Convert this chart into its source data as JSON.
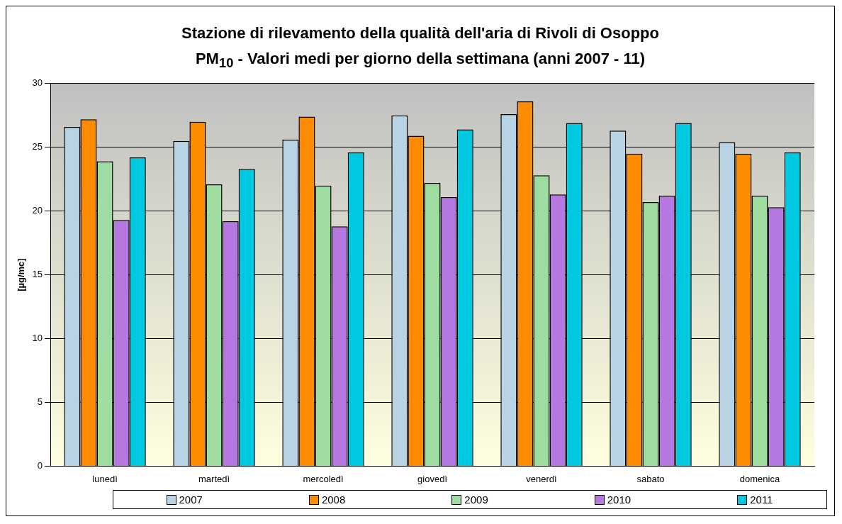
{
  "chart_data": {
    "type": "bar",
    "title": "Stazione di rilevamento della qualità dell'aria di Rivoli di Osoppo",
    "subtitle": "PM$_{10}$ - Valori medi per giorno della settimana (anni 2007 - 11)",
    "ylabel": "[µg/mc]",
    "categories": [
      "lunedì",
      "martedì",
      "mercoledì",
      "giovedì",
      "venerdì",
      "sabato",
      "domenica"
    ],
    "series": [
      {
        "name": "2007",
        "color": "#b8d4e4",
        "values": [
          26.6,
          25.5,
          25.6,
          27.5,
          27.6,
          26.3,
          25.4
        ]
      },
      {
        "name": "2008",
        "color": "#ff8c00",
        "values": [
          27.2,
          27.0,
          27.4,
          25.9,
          28.6,
          24.5,
          24.5
        ]
      },
      {
        "name": "2009",
        "color": "#9fdc9f",
        "values": [
          23.9,
          22.1,
          22.0,
          22.2,
          22.8,
          20.7,
          21.2
        ]
      },
      {
        "name": "2010",
        "color": "#b478e0",
        "values": [
          19.3,
          19.2,
          18.8,
          21.1,
          21.3,
          21.2,
          20.3
        ]
      },
      {
        "name": "2011",
        "color": "#00c8e0",
        "values": [
          24.2,
          23.3,
          24.6,
          26.4,
          26.9,
          26.9,
          24.6
        ]
      }
    ],
    "ylim": [
      0,
      30
    ],
    "yticks": [
      0,
      5,
      10,
      15,
      20,
      25,
      30
    ],
    "grid": "y",
    "legend": "bottom"
  }
}
